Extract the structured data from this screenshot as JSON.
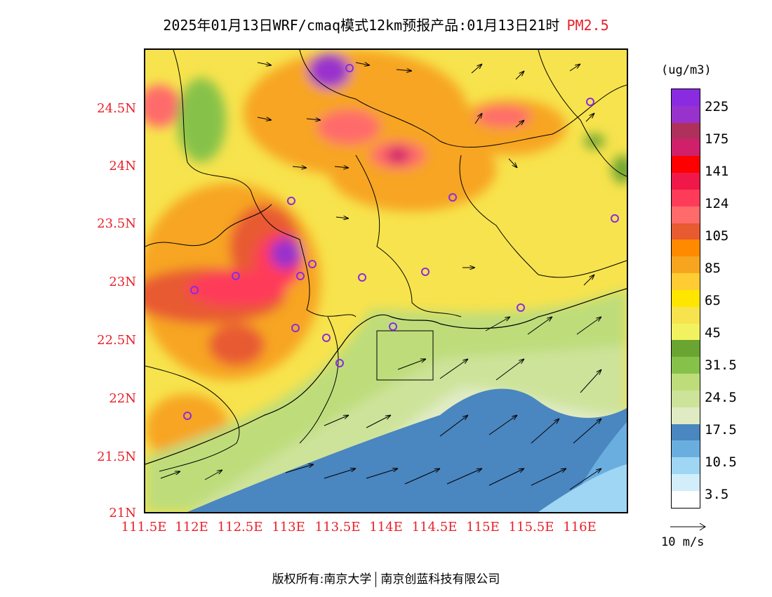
{
  "title": {
    "main": "2025年01月13日WRF/cmaq模式12km预报产品:01月13日21时",
    "species": "PM2.5"
  },
  "map": {
    "lat_labels": [
      "24.5N",
      "24N",
      "23.5N",
      "23N",
      "22.5N",
      "22N",
      "21.5N",
      "21N"
    ],
    "lon_labels": [
      "111.5E",
      "112E",
      "112.5E",
      "113E",
      "113.5E",
      "114E",
      "114.5E",
      "115E",
      "115.5E",
      "116E"
    ],
    "lon_range": [
      111.5,
      116.5
    ],
    "lat_range": [
      21.0,
      25.0
    ],
    "field": "PM2.5 concentration",
    "wind_vectors": "shown",
    "station_marker_color": "#8a2be2"
  },
  "legend": {
    "unit": "(ug/m3)",
    "colors": [
      "#8a2be2",
      "#9932cc",
      "#b0305c",
      "#d0206a",
      "#ff0000",
      "#f01848",
      "#ff3b5a",
      "#ff6a6a",
      "#e85a30",
      "#ff8a00",
      "#f7a520",
      "#ffcc33",
      "#ffe600",
      "#f7e34d",
      "#f2f260",
      "#6aa532",
      "#86c24a",
      "#bedd7a",
      "#cde39a",
      "#e0ebc4",
      "#4a86c0",
      "#6aaee0",
      "#9fd6f3",
      "#d2eefa",
      "#ffffff"
    ],
    "labels": [
      "225",
      "175",
      "141",
      "124",
      "105",
      "85",
      "65",
      "45",
      "31.5",
      "24.5",
      "17.5",
      "10.5",
      "3.5"
    ]
  },
  "wind_legend": {
    "label": "10 m/s"
  },
  "footer": {
    "left": "版权所有:南京大学",
    "right": "南京创蓝科技有限公司"
  }
}
